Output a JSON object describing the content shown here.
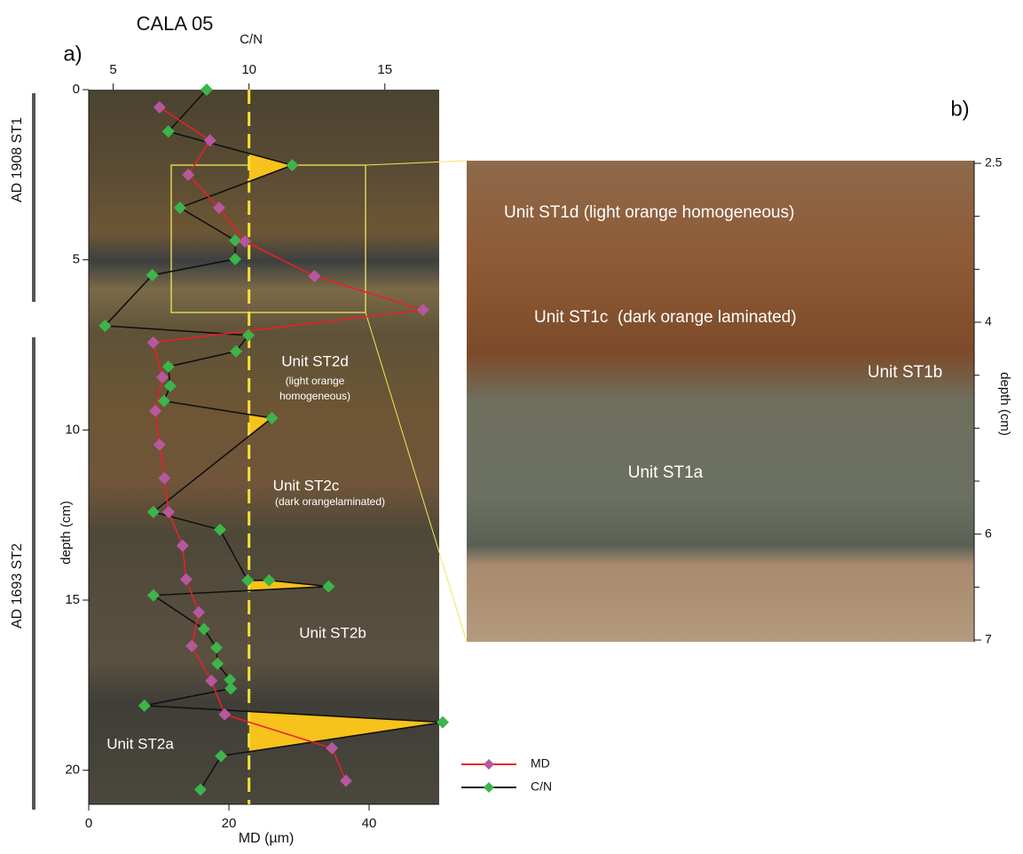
{
  "chart_data": [
    {
      "type": "line",
      "title": "CALA 05",
      "panel_label": "a)",
      "x_label": "MD (µm)",
      "x2_label": "C/N",
      "y_label": "depth (cm)",
      "xlim": [
        0,
        50
      ],
      "xticks": [
        0,
        20,
        40
      ],
      "x2lim": [
        4.1,
        17
      ],
      "x2ticks": [
        5,
        10,
        15
      ],
      "ylim": [
        0,
        21
      ],
      "yticks": [
        0,
        5,
        10,
        15,
        20
      ],
      "reference_line": 10,
      "series": [
        {
          "name": "MD",
          "color": "#e8202a",
          "marker_color": "#b5589e",
          "axis": "x",
          "depth": [
            0.52,
            1.49,
            2.5,
            3.47,
            4.46,
            5.48,
            6.47,
            7.43,
            8.45,
            9.44,
            10.43,
            11.42,
            12.41,
            13.4,
            14.39,
            15.36,
            16.35,
            17.37,
            18.36,
            19.35,
            20.31
          ],
          "values": [
            10.1,
            17.3,
            14.2,
            18.6,
            22.3,
            32.2,
            47.7,
            9.2,
            10.5,
            9.5,
            10.1,
            10.8,
            11.4,
            13.4,
            13.9,
            15.7,
            14.7,
            17.5,
            19.4,
            34.7,
            36.7
          ]
        },
        {
          "name": "C/N",
          "color": "#111111",
          "marker_color": "#3cb54a",
          "axis": "x2",
          "depth": [
            0,
            1.23,
            2.22,
            3.47,
            4.43,
            4.98,
            5.45,
            6.94,
            7.22,
            7.69,
            8.14,
            8.71,
            9.15,
            9.65,
            12.41,
            12.93,
            14.42,
            14.42,
            14.6,
            14.86,
            15.85,
            16.4,
            16.87,
            17.34,
            17.6,
            18.1,
            18.59,
            19.58,
            20.57
          ],
          "values": [
            8.44,
            7.03,
            11.59,
            7.46,
            9.49,
            9.49,
            6.44,
            4.7,
            9.98,
            9.52,
            7.03,
            7.1,
            6.87,
            10.84,
            6.48,
            8.93,
            9.95,
            10.74,
            12.93,
            6.48,
            8.34,
            8.8,
            8.84,
            9.3,
            9.33,
            6.15,
            17.13,
            8.97,
            8.21
          ]
        }
      ],
      "period_labels": [
        "AD 1908 ST1",
        "AD 1693 ST2"
      ],
      "annotations": [
        "Unit ST2d",
        "(light orange",
        "homogeneous)",
        "Unit ST2c",
        "(dark orangelaminated)",
        "Unit ST2b",
        "Unit ST2a"
      ]
    },
    {
      "type": "image",
      "panel_label": "b)",
      "y_label": "depth (cm)",
      "ylim": [
        2.5,
        7
      ],
      "yticks": [
        2.5,
        4,
        6,
        7
      ],
      "minor_ticks": [
        3,
        3.5,
        4.5,
        5,
        5.5,
        6.5
      ],
      "annotations": [
        "Unit ST1d (light orange homogeneous)",
        "Unit ST1c  (dark orange laminated)",
        "Unit ST1b",
        "Unit ST1a"
      ]
    }
  ]
}
